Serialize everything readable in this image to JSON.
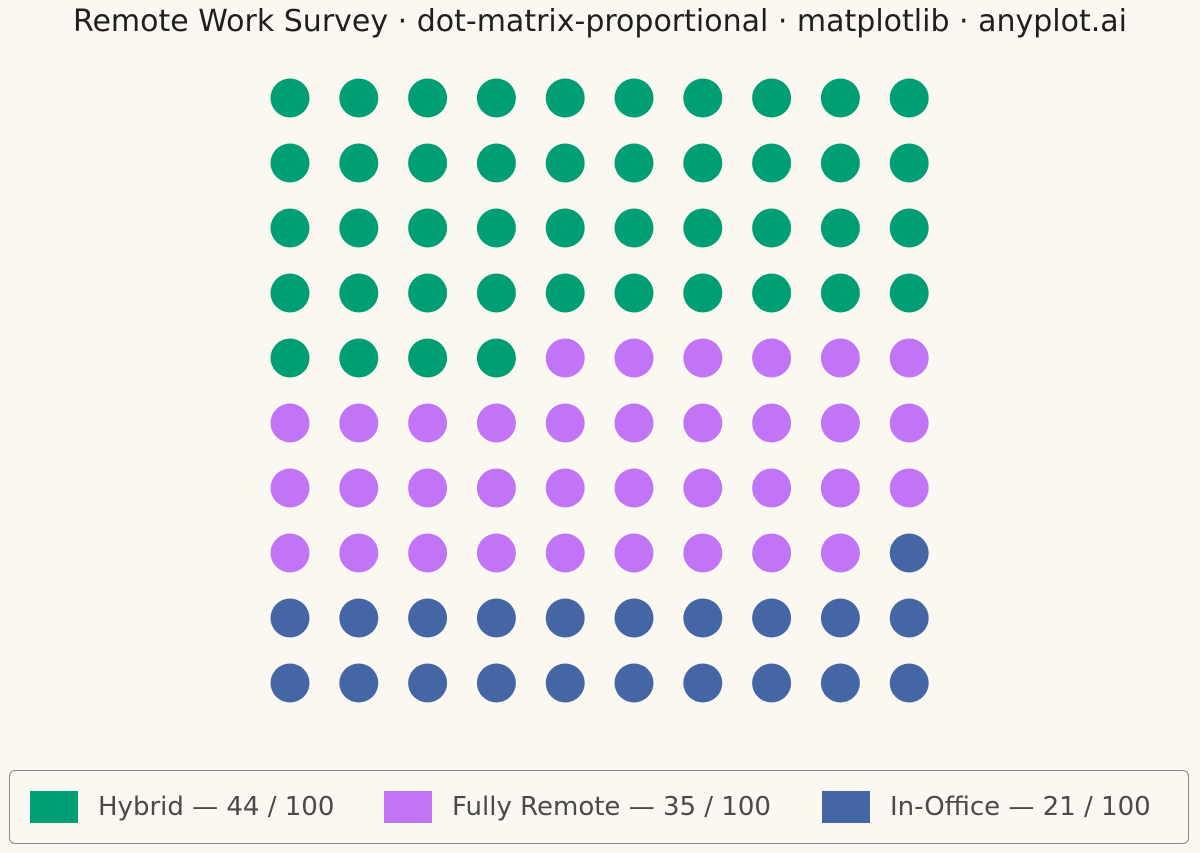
{
  "title": "Remote Work Survey · dot-matrix-proportional · matplotlib · anyplot.ai",
  "chart_data": {
    "type": "dot-matrix",
    "title": "Remote Work Survey · dot-matrix-proportional · matplotlib · anyplot.ai",
    "grid": {
      "rows": 10,
      "cols": 10
    },
    "total": 100,
    "categories": [
      {
        "name": "Hybrid",
        "count": 44,
        "color": "#009E73",
        "label": "Hybrid  —  44 / 100"
      },
      {
        "name": "Fully Remote",
        "count": 35,
        "color": "#C174F6",
        "label": "Fully Remote  —  35 / 100"
      },
      {
        "name": "In-Office",
        "count": 21,
        "color": "#4466A5",
        "label": "In-Office  —  21 / 100"
      }
    ],
    "legend_position": "bottom"
  }
}
